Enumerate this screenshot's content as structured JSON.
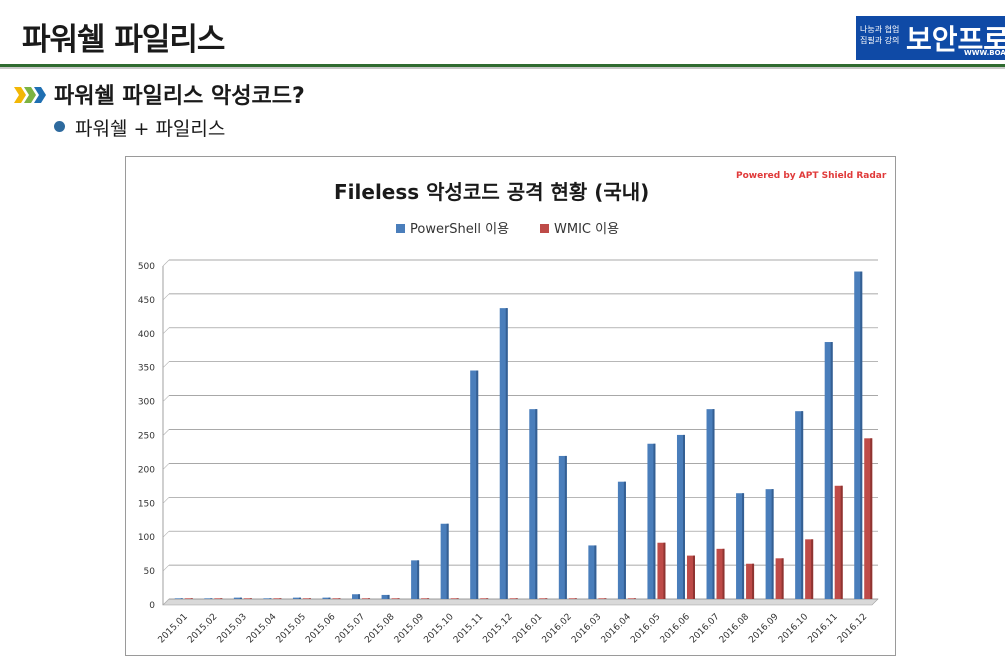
{
  "slide": {
    "title": "파워쉘 파일리스",
    "heading": "파워쉘 파일리스 악성코드?",
    "subpoint": "파워쉘 + 파일리스"
  },
  "logo": {
    "line1": "나눔과 협업",
    "line2": "집필과 강의",
    "name": "보안프로",
    "url": "WWW.BOA"
  },
  "colors": {
    "powershell": "#4a7ebb",
    "wmic": "#be4b48",
    "title_rule": "#2f6b30"
  },
  "chart_data": {
    "type": "bar",
    "title": "Fileless 악성코드 공격 현황 (국내)",
    "credit": "Powered by APT Shield Radar",
    "legend_position": "top",
    "grid": true,
    "ylim": [
      0,
      500
    ],
    "yticks": [
      0,
      50,
      100,
      150,
      200,
      250,
      300,
      350,
      400,
      450,
      500
    ],
    "categories": [
      "2015.01",
      "2015.02",
      "2015.03",
      "2015.04",
      "2015.05",
      "2015.06",
      "2015.07",
      "2015.08",
      "2015.09",
      "2015.10",
      "2015.11",
      "2015.12",
      "2016.01",
      "2016.02",
      "2016.03",
      "2016.04",
      "2016.05",
      "2016.06",
      "2016.07",
      "2016.08",
      "2016.09",
      "2016.10",
      "2016.11",
      "2016.12"
    ],
    "series": [
      {
        "name": "PowerShell 이용",
        "values": [
          1,
          1,
          2,
          1,
          2,
          2,
          7,
          6,
          57,
          111,
          337,
          429,
          280,
          211,
          79,
          173,
          229,
          242,
          280,
          156,
          162,
          277,
          379,
          483
        ]
      },
      {
        "name": "WMIC 이용",
        "values": [
          1,
          1,
          1,
          1,
          1,
          1,
          1,
          1,
          1,
          1,
          1,
          1,
          1,
          1,
          1,
          1,
          83,
          64,
          74,
          52,
          60,
          88,
          167,
          237
        ]
      }
    ]
  }
}
